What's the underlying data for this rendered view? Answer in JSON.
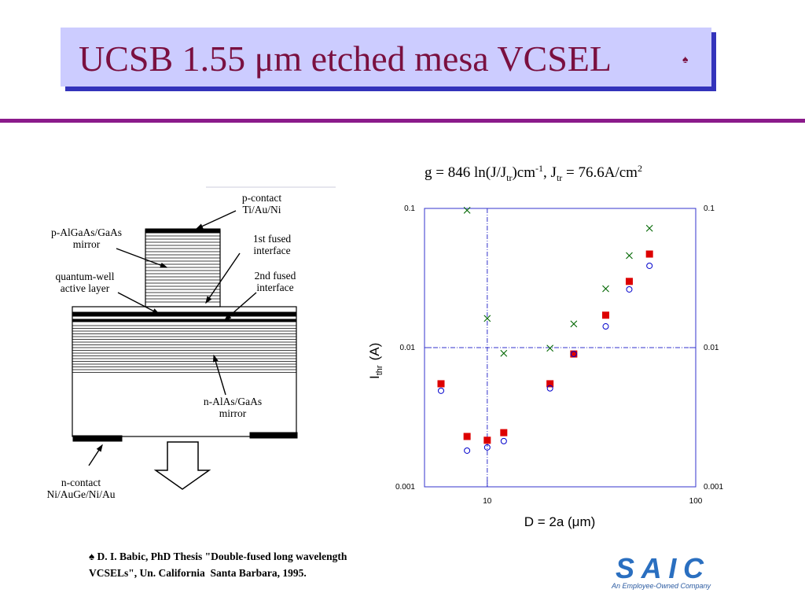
{
  "slide": {
    "title": "UCSB 1.55 μm etched mesa VCSEL",
    "title_mark": "♠",
    "footnote": [
      "♠ D. I. Babic, PhD Thesis \"Double-fused long wavelength",
      "VCSELs\", Un. California  Santa Barbara, 1995."
    ],
    "logo": {
      "name": "SAIC",
      "tagline": "An Employee-Owned Company"
    }
  },
  "diagram": {
    "labels": [
      [
        "p-contact",
        "Ti/Au/Ni"
      ],
      [
        "p-AlGaAs/GaAs",
        "mirror"
      ],
      [
        "1st fused",
        "interface"
      ],
      [
        "quantum-well",
        "active layer"
      ],
      [
        "2nd fused",
        "interface"
      ],
      [
        "n-AlAs/GaAs",
        "mirror"
      ],
      [
        "n-contact",
        "Ni/AuGe/Ni/Au"
      ]
    ]
  },
  "chart_data": {
    "type": "scatter",
    "annotation": [
      "g = 846 ln(J/J",
      "tr",
      ")cm",
      "-1",
      ", J",
      "tr",
      " = 76.6A/cm",
      "2"
    ],
    "xlabel": "D = 2a (μm)",
    "ylabel": [
      "I",
      "thr",
      "(A)"
    ],
    "xscale": "log",
    "yscale": "log",
    "grid": true,
    "xlim": [
      5,
      100
    ],
    "xticks": [
      10,
      100
    ],
    "ylim": [
      0.001,
      0.1
    ],
    "yticks": [
      0.001,
      0.01,
      0.1
    ],
    "y2lim": [
      0.001,
      0.1
    ],
    "y2ticks": [
      0.001,
      0.01,
      0.1
    ],
    "series": [
      {
        "marker": "square",
        "color": "#dd0000",
        "x": [
          6,
          8,
          10,
          12,
          20,
          26,
          37,
          48,
          60
        ],
        "values": [
          0.0055,
          0.0023,
          0.00216,
          0.00245,
          0.0055,
          0.009,
          0.0171,
          0.0299,
          0.047
        ]
      },
      {
        "marker": "circle",
        "color": "#0000cc",
        "x": [
          6,
          8,
          10,
          12,
          20,
          26,
          37,
          48,
          60
        ],
        "values": [
          0.0049,
          0.00182,
          0.00192,
          0.00213,
          0.0051,
          0.009,
          0.0142,
          0.0262,
          0.0387
        ]
      },
      {
        "marker": "cross",
        "color": "#006600",
        "x": [
          8,
          10,
          12,
          20,
          26,
          37,
          48,
          60
        ],
        "values": [
          0.097,
          0.0162,
          0.0091,
          0.0099,
          0.0148,
          0.0265,
          0.0458,
          0.072
        ]
      }
    ]
  }
}
